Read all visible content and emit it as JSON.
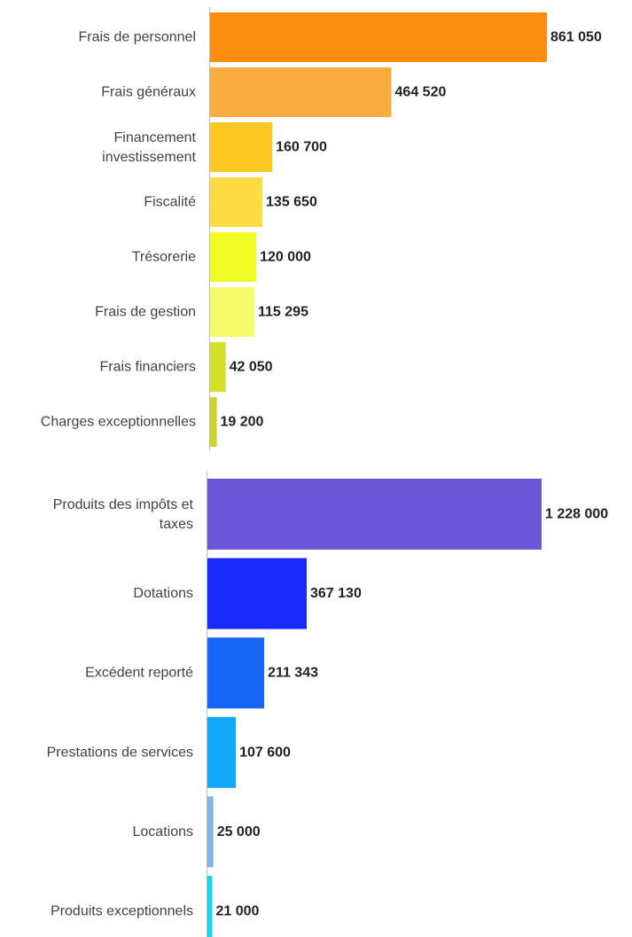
{
  "chart_data": [
    {
      "type": "bar",
      "orientation": "horizontal",
      "categories": [
        "Frais de personnel",
        "Frais généraux",
        "Financement investissement",
        "Fiscalité",
        "Trésorerie",
        "Frais de gestion",
        "Frais financiers",
        "Charges exceptionnelles"
      ],
      "values": [
        861050,
        464520,
        160700,
        135650,
        120000,
        115295,
        42050,
        19200
      ],
      "value_labels": [
        "861 050",
        "464 520",
        "160 700",
        "135 650",
        "120 000",
        "115 295",
        "42 050",
        "19 200"
      ],
      "colors": [
        "#fb8c0e",
        "#faad3f",
        "#fbc922",
        "#fddc43",
        "#f1fc26",
        "#f6fb6b",
        "#d2e125",
        "#c6d62c"
      ],
      "title": "",
      "xlabel": "",
      "ylabel": "",
      "grid": false,
      "legend": "none"
    },
    {
      "type": "bar",
      "orientation": "horizontal",
      "categories": [
        "Produits des impôts et taxes",
        "Dotations",
        "Excédent reporté",
        "Prestations de services",
        "Locations",
        "Produits exceptionnels"
      ],
      "values": [
        1228000,
        367130,
        211343,
        107600,
        25000,
        21000
      ],
      "value_labels": [
        "1 228 000",
        "367 130",
        "211 343",
        "107 600",
        "25 000",
        "21 000"
      ],
      "colors": [
        "#6c57d9",
        "#1928fb",
        "#1566f5",
        "#11a6f7",
        "#82b3e5",
        "#17d3f5"
      ],
      "title": "",
      "xlabel": "",
      "ylabel": "",
      "grid": false,
      "legend": "none"
    }
  ]
}
